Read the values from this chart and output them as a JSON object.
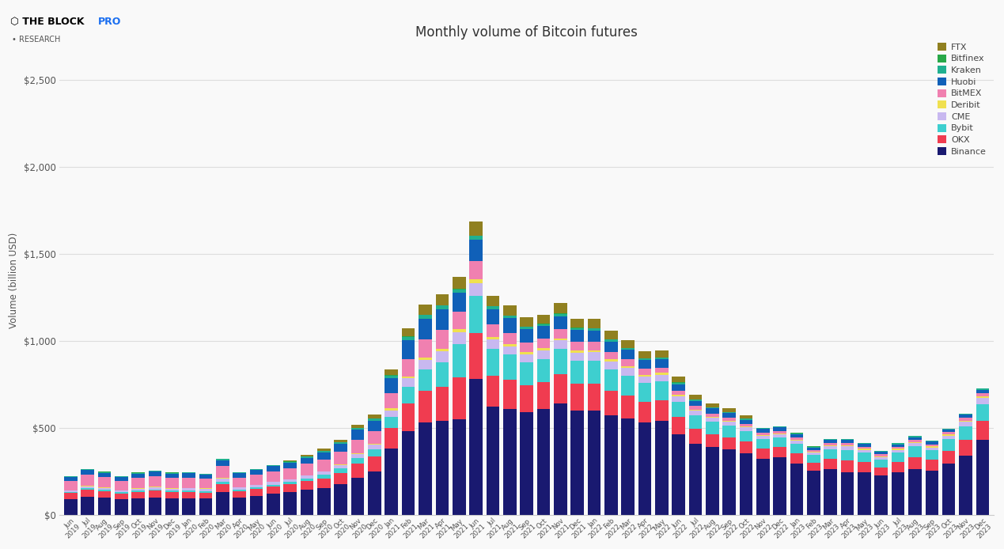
{
  "title": "Monthly volume of Bitcoin futures",
  "ylabel": "Volume (billion USD)",
  "ylim": [
    0,
    2700
  ],
  "yticks": [
    0,
    500,
    1000,
    1500,
    2000,
    2500
  ],
  "ytick_labels": [
    "$0",
    "$500",
    "$1,000",
    "$1,500",
    "$2,000",
    "$2,500"
  ],
  "background_color": "#f9f9f9",
  "grid_color": "#dddddd",
  "colors": {
    "Binance": "#191970",
    "OKX": "#f03c50",
    "Bybit": "#3ecfcf",
    "CME": "#c8b8f0",
    "Deribit": "#f0e050",
    "BitMEX": "#f080b0",
    "Huobi": "#1060b8",
    "Kraken": "#20b090",
    "Bitfinex": "#28a848",
    "FTX": "#908020"
  },
  "months": [
    "Jun\n2019",
    "Jul\n2019",
    "Aug\n2019",
    "Sep\n2019",
    "Oct\n2019",
    "Nov\n2019",
    "Dec\n2019",
    "Jan\n2020",
    "Feb\n2020",
    "Mar\n2020",
    "Apr\n2020",
    "May\n2020",
    "Jun\n2020",
    "Jul\n2020",
    "Aug\n2020",
    "Sep\n2020",
    "Oct\n2020",
    "Nov\n2020",
    "Dec\n2020",
    "Jan\n2021",
    "Feb\n2021",
    "Mar\n2021",
    "Apr\n2021",
    "May\n2021",
    "Jun\n2021",
    "Jul\n2021",
    "Aug\n2021",
    "Sep\n2021",
    "Oct\n2021",
    "Nov\n2021",
    "Dec\n2021",
    "Jan\n2022",
    "Feb\n2022",
    "Mar\n2022",
    "Apr\n2022",
    "May\n2022",
    "Jun\n2022",
    "Jul\n2022",
    "Aug\n2022",
    "Sep\n2022",
    "Oct\n2022",
    "Nov\n2022",
    "Dec\n2022",
    "Jan\n2023",
    "Feb\n2023",
    "Mar\n2023",
    "Apr\n2023",
    "May\n2023",
    "Jun\n2023",
    "Jul\n2023",
    "Aug\n2023",
    "Sep\n2023",
    "Oct\n2023",
    "Nov\n2023",
    "Dec\n2023"
  ],
  "data": {
    "Binance": [
      90,
      105,
      100,
      90,
      95,
      100,
      95,
      95,
      95,
      130,
      100,
      110,
      120,
      130,
      145,
      155,
      175,
      215,
      250,
      380,
      480,
      530,
      540,
      550,
      780,
      620,
      610,
      590,
      610,
      640,
      600,
      600,
      570,
      555,
      530,
      540,
      465,
      410,
      390,
      375,
      355,
      320,
      330,
      295,
      255,
      265,
      245,
      245,
      225,
      245,
      265,
      255,
      295,
      340,
      430
    ],
    "OKX": [
      35,
      42,
      36,
      32,
      36,
      38,
      35,
      35,
      32,
      48,
      35,
      38,
      42,
      45,
      48,
      54,
      65,
      78,
      85,
      120,
      160,
      185,
      195,
      240,
      265,
      180,
      168,
      155,
      155,
      168,
      155,
      155,
      145,
      132,
      120,
      120,
      96,
      84,
      72,
      70,
      65,
      60,
      60,
      58,
      46,
      58,
      68,
      58,
      46,
      58,
      68,
      62,
      74,
      90,
      112
    ],
    "Bybit": [
      6,
      7,
      8,
      7,
      8,
      9,
      9,
      9,
      9,
      12,
      9,
      10,
      12,
      14,
      16,
      21,
      26,
      34,
      42,
      65,
      96,
      120,
      144,
      192,
      216,
      156,
      144,
      132,
      132,
      144,
      132,
      132,
      120,
      114,
      108,
      108,
      90,
      78,
      72,
      66,
      60,
      54,
      54,
      54,
      42,
      54,
      60,
      54,
      48,
      54,
      60,
      54,
      66,
      78,
      96
    ],
    "CME": [
      9,
      10,
      12,
      9,
      12,
      12,
      12,
      14,
      14,
      18,
      14,
      14,
      14,
      15,
      16,
      18,
      21,
      24,
      26,
      36,
      48,
      54,
      60,
      66,
      72,
      54,
      48,
      46,
      48,
      50,
      46,
      48,
      46,
      43,
      38,
      38,
      30,
      26,
      24,
      24,
      22,
      18,
      18,
      18,
      14,
      18,
      21,
      17,
      14,
      17,
      19,
      17,
      21,
      26,
      33
    ],
    "Deribit": [
      2,
      2,
      2,
      2,
      2,
      2,
      2,
      2,
      2,
      4,
      2,
      2,
      2,
      2,
      3,
      3,
      4,
      5,
      6,
      10,
      12,
      14,
      17,
      19,
      22,
      14,
      13,
      12,
      12,
      13,
      12,
      12,
      12,
      11,
      10,
      10,
      8,
      7,
      7,
      7,
      6,
      6,
      6,
      6,
      5,
      6,
      6,
      6,
      5,
      6,
      7,
      6,
      7,
      8,
      10
    ],
    "BitMEX": [
      55,
      65,
      60,
      55,
      60,
      63,
      60,
      60,
      56,
      70,
      55,
      57,
      60,
      63,
      65,
      68,
      71,
      76,
      71,
      88,
      99,
      105,
      105,
      99,
      105,
      71,
      64,
      57,
      55,
      55,
      50,
      46,
      42,
      38,
      33,
      31,
      24,
      20,
      18,
      17,
      15,
      13,
      13,
      13,
      11,
      13,
      13,
      12,
      11,
      12,
      13,
      12,
      13,
      15,
      18
    ],
    "Huobi": [
      22,
      28,
      24,
      22,
      24,
      26,
      24,
      24,
      22,
      31,
      24,
      26,
      29,
      31,
      35,
      40,
      46,
      57,
      61,
      88,
      110,
      121,
      121,
      110,
      121,
      88,
      83,
      75,
      72,
      72,
      66,
      66,
      61,
      55,
      50,
      46,
      38,
      31,
      28,
      26,
      24,
      22,
      22,
      20,
      15,
      18,
      17,
      15,
      13,
      14,
      15,
      14,
      15,
      18,
      20
    ],
    "Kraken": [
      4,
      5,
      5,
      4,
      5,
      5,
      5,
      5,
      5,
      7,
      5,
      5,
      5,
      6,
      7,
      8,
      9,
      10,
      11,
      13,
      17,
      19,
      20,
      20,
      22,
      16,
      14,
      13,
      13,
      14,
      12,
      12,
      11,
      10,
      9,
      9,
      8,
      7,
      6,
      6,
      6,
      5,
      5,
      5,
      4,
      5,
      5,
      5,
      4,
      5,
      5,
      5,
      5,
      6,
      7
    ],
    "Bitfinex": [
      1,
      1,
      1,
      1,
      1,
      1,
      1,
      1,
      1,
      2,
      1,
      1,
      1,
      1,
      1,
      1,
      1,
      2,
      2,
      2,
      3,
      3,
      3,
      3,
      3,
      2,
      2,
      2,
      2,
      2,
      2,
      2,
      2,
      2,
      2,
      2,
      2,
      1,
      1,
      1,
      1,
      1,
      1,
      1,
      1,
      1,
      1,
      1,
      1,
      1,
      1,
      1,
      1,
      1,
      1
    ],
    "FTX": [
      0,
      0,
      0,
      0,
      0,
      0,
      0,
      0,
      0,
      0,
      0,
      0,
      0,
      6,
      9,
      12,
      14,
      18,
      21,
      32,
      46,
      58,
      63,
      70,
      82,
      58,
      56,
      52,
      52,
      58,
      52,
      52,
      48,
      44,
      40,
      40,
      32,
      28,
      23,
      21,
      18,
      0,
      0,
      0,
      0,
      0,
      0,
      0,
      0,
      0,
      0,
      0,
      0,
      0,
      0
    ]
  }
}
